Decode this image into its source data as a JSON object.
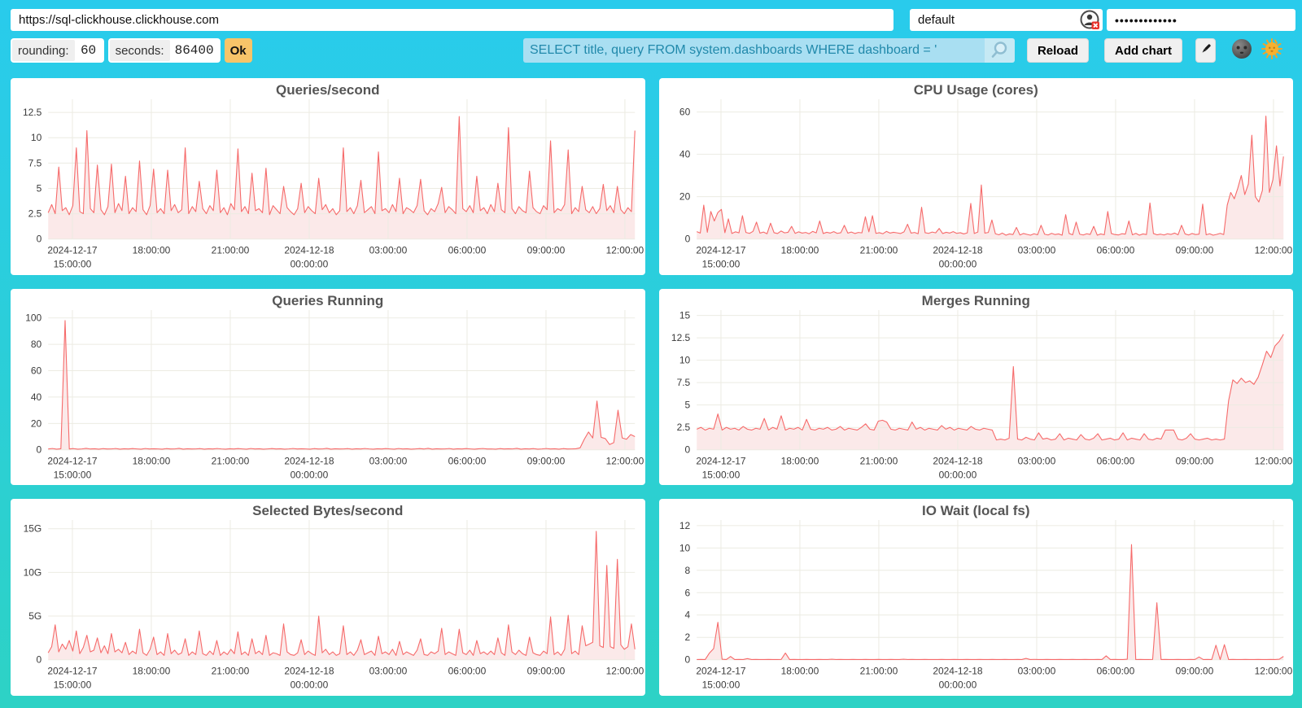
{
  "browser": {
    "url_value": "https://sql-clickhouse.clickhouse.com",
    "user_value": "default",
    "password_value": "•••••••••••••"
  },
  "toolbar": {
    "rounding_label": "rounding:",
    "rounding_value": "60",
    "seconds_label": "seconds:",
    "seconds_value": "86400",
    "ok_label": "Ok",
    "query_value": "SELECT title, query FROM system.dashboards WHERE dashboard = '",
    "search_icon": "magnifier-icon",
    "reload_label": "Reload",
    "add_chart_label": "Add chart",
    "edit_icon": "pencil-icon",
    "dark_toggle_icon": "new-moon-face-icon",
    "light_toggle_icon": "sun-with-face-icon",
    "user_field_icon": "user-circle-x-icon"
  },
  "colors": {
    "background_top": "#29CBEC",
    "background_bottom": "#2DD2C5",
    "ok_button": "#F7C469",
    "query_background": "#A9DFF2",
    "query_text": "#2189AB",
    "panel_background": "#FFFFFF",
    "title_text": "#555555",
    "axis_text": "#3B3B3B"
  },
  "chart_data": {
    "type": "line",
    "style": "area",
    "line_color": "#F66A6A",
    "fill_color": "#FBE9E9",
    "grid_color": "#ECEBE2",
    "x_axis": {
      "start_hour": 14.08,
      "end_hour": 36.38,
      "ticks": [
        {
          "hour": 15,
          "lines": [
            "2024-12-17",
            "15:00:00"
          ]
        },
        {
          "hour": 18,
          "lines": [
            "18:00:00"
          ]
        },
        {
          "hour": 21,
          "lines": [
            "21:00:00"
          ]
        },
        {
          "hour": 24,
          "lines": [
            "2024-12-18",
            "00:00:00"
          ]
        },
        {
          "hour": 27,
          "lines": [
            "03:00:00"
          ]
        },
        {
          "hour": 30,
          "lines": [
            "06:00:00"
          ]
        },
        {
          "hour": 33,
          "lines": [
            "09:00:00"
          ]
        },
        {
          "hour": 36,
          "lines": [
            "12:00:00"
          ]
        }
      ]
    },
    "charts": [
      {
        "title": "Queries/second",
        "ylim": [
          0,
          13.8
        ],
        "yticks": [
          {
            "v": 0,
            "label": "0"
          },
          {
            "v": 2.5,
            "label": "2.5"
          },
          {
            "v": 5,
            "label": "5"
          },
          {
            "v": 7.5,
            "label": "7.5"
          },
          {
            "v": 10,
            "label": "10"
          },
          {
            "v": 12.5,
            "label": "12.5"
          }
        ],
        "values": [
          2.6,
          3.4,
          2.5,
          7.1,
          2.8,
          3.1,
          2.4,
          3.3,
          9.0,
          2.7,
          2.5,
          10.7,
          3.0,
          2.6,
          7.3,
          2.9,
          2.4,
          3.2,
          7.4,
          2.6,
          3.5,
          2.8,
          6.2,
          2.5,
          3.1,
          2.7,
          7.7,
          2.9,
          2.4,
          3.3,
          6.9,
          2.6,
          3.0,
          2.5,
          6.8,
          2.8,
          3.4,
          2.6,
          2.9,
          9.0,
          2.5,
          3.2,
          2.7,
          5.7,
          3.0,
          2.5,
          3.3,
          2.8,
          6.8,
          2.6,
          3.1,
          2.4,
          3.5,
          2.9,
          8.9,
          2.7,
          3.2,
          2.5,
          6.5,
          2.8,
          3.0,
          2.6,
          7.0,
          2.4,
          3.3,
          2.9,
          2.5,
          5.2,
          3.1,
          2.7,
          2.4,
          3.0,
          5.5,
          2.6,
          3.2,
          2.8,
          2.5,
          6.0,
          2.9,
          3.4,
          2.6,
          3.0,
          2.4,
          2.8,
          9.0,
          2.7,
          3.1,
          2.5,
          3.3,
          5.8,
          2.6,
          2.9,
          3.2,
          2.5,
          8.6,
          2.8,
          3.0,
          2.6,
          3.4,
          2.7,
          6.0,
          2.5,
          3.1,
          2.9,
          2.6,
          3.3,
          5.9,
          2.8,
          2.4,
          3.0,
          2.7,
          3.5,
          5.1,
          2.6,
          3.2,
          2.9,
          2.5,
          12.1,
          3.0,
          2.7,
          3.3,
          2.6,
          6.2,
          2.8,
          3.1,
          2.5,
          3.4,
          2.7,
          5.5,
          2.9,
          2.6,
          11.0,
          3.0,
          2.5,
          3.2,
          2.8,
          2.6,
          6.7,
          3.1,
          2.7,
          2.5,
          3.3,
          2.9,
          9.7,
          2.6,
          3.0,
          2.8,
          3.4,
          8.8,
          2.5,
          3.1,
          2.7,
          5.2,
          2.9,
          2.6,
          3.2,
          2.5,
          3.0,
          5.4,
          2.8,
          3.3,
          2.6,
          5.2,
          2.9,
          2.5,
          3.1,
          2.7,
          10.7
        ]
      },
      {
        "title": "CPU Usage (cores)",
        "ylim": [
          0,
          66
        ],
        "yticks": [
          {
            "v": 0,
            "label": "0"
          },
          {
            "v": 20,
            "label": "20"
          },
          {
            "v": 40,
            "label": "40"
          },
          {
            "v": 60,
            "label": "60"
          }
        ],
        "values": [
          3.5,
          2.8,
          16.0,
          3.2,
          13.0,
          8.5,
          12.5,
          14.0,
          3.0,
          9.5,
          2.6,
          3.4,
          2.9,
          11.0,
          3.1,
          2.7,
          3.6,
          8.0,
          2.8,
          3.3,
          2.5,
          7.5,
          3.0,
          2.6,
          3.8,
          2.9,
          3.2,
          6.0,
          2.7,
          3.4,
          2.8,
          3.1,
          2.5,
          3.6,
          2.9,
          8.5,
          2.6,
          3.2,
          2.8,
          3.5,
          2.7,
          3.0,
          6.5,
          2.8,
          3.3,
          2.6,
          3.1,
          2.9,
          10.5,
          3.4,
          11.0,
          2.7,
          3.0,
          2.5,
          3.6,
          2.8,
          3.2,
          2.9,
          2.6,
          3.4,
          7.0,
          2.8,
          3.1,
          2.5,
          15.0,
          3.0,
          2.7,
          3.3,
          2.9,
          5.0,
          2.6,
          3.2,
          2.8,
          3.5,
          2.7,
          3.0,
          2.4,
          2.9,
          16.8,
          2.6,
          3.3,
          25.5,
          2.8,
          3.1,
          9.0,
          2.5,
          2.0,
          2.8,
          1.8,
          2.4,
          2.1,
          5.5,
          1.9,
          2.6,
          2.2,
          1.8,
          2.5,
          2.0,
          6.5,
          2.3,
          1.9,
          2.7,
          2.1,
          2.4,
          1.8,
          11.5,
          2.6,
          2.0,
          8.0,
          2.3,
          1.9,
          2.5,
          2.2,
          6.0,
          1.8,
          2.4,
          2.0,
          13.0,
          2.6,
          2.1,
          1.9,
          2.5,
          2.3,
          8.5,
          2.0,
          2.7,
          1.8,
          2.4,
          2.1,
          17.0,
          2.6,
          2.0,
          2.3,
          1.9,
          2.5,
          2.2,
          2.8,
          2.0,
          6.5,
          2.4,
          1.9,
          2.6,
          2.1,
          2.3,
          16.5,
          2.0,
          2.5,
          1.8,
          2.2,
          2.7,
          2.1,
          16.0,
          22.0,
          19.0,
          24.0,
          30.0,
          21.0,
          26.0,
          49.0,
          20.0,
          17.5,
          23.0,
          58.0,
          22.0,
          28.0,
          44.0,
          25.0,
          39.0
        ]
      },
      {
        "title": "Queries Running",
        "ylim": [
          0,
          106
        ],
        "yticks": [
          {
            "v": 0,
            "label": "0"
          },
          {
            "v": 20,
            "label": "20"
          },
          {
            "v": 40,
            "label": "40"
          },
          {
            "v": 60,
            "label": "60"
          },
          {
            "v": 80,
            "label": "80"
          },
          {
            "v": 100,
            "label": "100"
          }
        ],
        "values": [
          0.6,
          1.0,
          0.5,
          0.8,
          98.0,
          0.6,
          0.9,
          0.5,
          0.7,
          1.1,
          0.6,
          0.8,
          0.5,
          0.9,
          0.6,
          0.7,
          1.0,
          0.5,
          0.8,
          0.6,
          0.9,
          0.7,
          0.5,
          1.0,
          0.6,
          0.8,
          0.7,
          0.5,
          0.9,
          0.6,
          0.7,
          1.1,
          0.5,
          0.8,
          0.6,
          0.7,
          0.9,
          0.5,
          0.8,
          0.6,
          1.0,
          0.7,
          0.5,
          0.8,
          0.6,
          0.9,
          0.7,
          0.5,
          1.0,
          0.6,
          0.8,
          0.5,
          0.7,
          0.9,
          0.6,
          0.8,
          0.5,
          0.7,
          1.0,
          0.6,
          0.8,
          0.7,
          0.5,
          0.9,
          0.6,
          0.7,
          1.1,
          0.5,
          0.8,
          0.6,
          0.7,
          0.9,
          0.5,
          0.8,
          0.6,
          1.0,
          0.7,
          0.5,
          0.8,
          0.6,
          0.9,
          0.7,
          0.5,
          1.0,
          0.6,
          0.8,
          0.5,
          0.7,
          0.9,
          0.6,
          1.1,
          0.5,
          0.8,
          0.6,
          0.7,
          1.0,
          0.5,
          0.8,
          0.6,
          0.9,
          0.7,
          0.5,
          0.8,
          1.0,
          0.6,
          0.7,
          0.5,
          0.9,
          0.6,
          0.8,
          0.7,
          1.1,
          0.5,
          0.8,
          0.6,
          0.9,
          0.5,
          0.7,
          1.0,
          0.6,
          0.8,
          0.5,
          0.9,
          0.6,
          0.7,
          0.8,
          1.5,
          8.0,
          13.5,
          9.0,
          37.0,
          9.5,
          8.5,
          4.0,
          5.5,
          30.0,
          9.0,
          8.0,
          11.5,
          10.0
        ]
      },
      {
        "title": "Merges Running",
        "ylim": [
          0,
          15.6
        ],
        "yticks": [
          {
            "v": 0,
            "label": "0"
          },
          {
            "v": 2.5,
            "label": "2.5"
          },
          {
            "v": 5,
            "label": "5"
          },
          {
            "v": 7.5,
            "label": "7.5"
          },
          {
            "v": 10,
            "label": "10"
          },
          {
            "v": 12.5,
            "label": "12.5"
          },
          {
            "v": 15,
            "label": "15"
          }
        ],
        "values": [
          2.3,
          2.5,
          2.2,
          2.4,
          2.3,
          4.0,
          2.2,
          2.5,
          2.3,
          2.4,
          2.2,
          2.6,
          2.3,
          2.2,
          2.4,
          2.3,
          3.5,
          2.2,
          2.5,
          2.3,
          3.8,
          2.2,
          2.4,
          2.3,
          2.5,
          2.2,
          3.4,
          2.3,
          2.2,
          2.4,
          2.3,
          2.5,
          2.2,
          2.3,
          2.6,
          2.2,
          2.4,
          2.3,
          2.2,
          2.5,
          2.9,
          2.3,
          2.2,
          3.2,
          3.3,
          3.1,
          2.3,
          2.2,
          2.4,
          2.3,
          2.2,
          3.1,
          2.3,
          2.5,
          2.2,
          2.4,
          2.3,
          2.2,
          2.7,
          2.3,
          2.5,
          2.2,
          2.4,
          2.3,
          2.2,
          2.6,
          2.3,
          2.2,
          2.4,
          2.3,
          2.2,
          1.1,
          1.2,
          1.1,
          1.3,
          9.3,
          1.2,
          1.1,
          1.4,
          1.2,
          1.1,
          1.9,
          1.2,
          1.3,
          1.1,
          1.2,
          1.8,
          1.1,
          1.3,
          1.2,
          1.1,
          1.7,
          1.2,
          1.1,
          1.3,
          1.8,
          1.1,
          1.2,
          1.3,
          1.1,
          1.2,
          1.9,
          1.1,
          1.3,
          1.2,
          1.1,
          1.8,
          1.2,
          1.1,
          1.3,
          1.2,
          2.2,
          2.2,
          2.2,
          1.2,
          1.1,
          1.3,
          1.8,
          1.2,
          1.1,
          1.2,
          1.3,
          1.1,
          1.2,
          1.1,
          1.2,
          5.5,
          7.8,
          7.4,
          8.0,
          7.5,
          7.7,
          7.3,
          8.1,
          9.5,
          11.0,
          10.3,
          11.6,
          12.1,
          12.9
        ]
      },
      {
        "title": "Selected Bytes/second",
        "ylim": [
          0,
          16
        ],
        "yticks": [
          {
            "v": 0,
            "label": "0"
          },
          {
            "v": 5,
            "label": "5G"
          },
          {
            "v": 10,
            "label": "10G"
          },
          {
            "v": 15,
            "label": "15G"
          }
        ],
        "values": [
          0.8,
          1.5,
          4.0,
          0.9,
          1.8,
          1.2,
          2.2,
          1.0,
          3.3,
          0.7,
          1.4,
          2.8,
          0.9,
          1.1,
          2.5,
          0.8,
          1.6,
          0.7,
          3.0,
          0.9,
          1.2,
          0.8,
          2.0,
          0.6,
          1.0,
          0.7,
          3.5,
          0.8,
          0.5,
          1.2,
          2.6,
          0.6,
          0.9,
          0.5,
          3.0,
          0.7,
          1.1,
          0.6,
          0.8,
          2.4,
          0.5,
          0.9,
          0.6,
          3.3,
          0.7,
          0.5,
          1.0,
          0.6,
          2.2,
          0.5,
          0.9,
          0.6,
          1.2,
          0.7,
          3.2,
          0.6,
          0.9,
          0.5,
          2.4,
          0.7,
          1.0,
          0.6,
          2.8,
          0.5,
          0.8,
          0.7,
          0.5,
          4.1,
          0.9,
          0.6,
          0.5,
          0.8,
          2.3,
          0.6,
          1.0,
          0.7,
          0.5,
          5.0,
          0.8,
          1.2,
          0.6,
          0.9,
          0.5,
          0.7,
          3.9,
          0.6,
          0.9,
          0.5,
          1.1,
          2.3,
          0.6,
          0.8,
          1.0,
          0.5,
          2.7,
          0.7,
          0.9,
          0.6,
          1.2,
          0.5,
          2.1,
          0.6,
          0.9,
          0.7,
          0.5,
          1.1,
          2.4,
          0.6,
          0.5,
          0.9,
          0.7,
          1.0,
          3.6,
          0.6,
          0.9,
          0.7,
          0.5,
          3.5,
          0.8,
          0.6,
          1.1,
          0.5,
          2.2,
          0.7,
          0.9,
          0.6,
          1.0,
          0.6,
          2.5,
          0.8,
          0.5,
          4.0,
          0.9,
          0.6,
          1.1,
          0.7,
          0.5,
          2.6,
          0.8,
          0.6,
          0.5,
          1.0,
          0.7,
          4.9,
          0.6,
          0.9,
          0.5,
          1.2,
          5.1,
          0.7,
          1.0,
          0.6,
          3.9,
          1.6,
          1.8,
          2.0,
          14.7,
          1.6,
          1.4,
          10.8,
          1.5,
          1.3,
          11.5,
          1.7,
          1.2,
          1.5,
          4.1,
          1.2
        ]
      },
      {
        "title": "IO Wait (local fs)",
        "ylim": [
          0,
          12.5
        ],
        "yticks": [
          {
            "v": 0,
            "label": "0"
          },
          {
            "v": 2,
            "label": "2"
          },
          {
            "v": 4,
            "label": "4"
          },
          {
            "v": 6,
            "label": "6"
          },
          {
            "v": 8,
            "label": "8"
          },
          {
            "v": 10,
            "label": "10"
          },
          {
            "v": 12,
            "label": "12"
          }
        ],
        "values": [
          0.02,
          0.03,
          0.02,
          0.6,
          1.0,
          3.35,
          0.05,
          0.02,
          0.3,
          0.02,
          0.03,
          0.02,
          0.1,
          0.02,
          0.03,
          0.02,
          0.02,
          0.03,
          0.02,
          0.02,
          0.03,
          0.6,
          0.02,
          0.03,
          0.02,
          0.02,
          0.03,
          0.02,
          0.02,
          0.03,
          0.02,
          0.02,
          0.05,
          0.02,
          0.03,
          0.02,
          0.02,
          0.03,
          0.02,
          0.02,
          0.03,
          0.02,
          0.02,
          0.03,
          0.02,
          0.02,
          0.03,
          0.02,
          0.02,
          0.05,
          0.02,
          0.03,
          0.02,
          0.02,
          0.03,
          0.02,
          0.02,
          0.02,
          0.03,
          0.02,
          0.02,
          0.03,
          0.02,
          0.02,
          0.03,
          0.02,
          0.02,
          0.03,
          0.02,
          0.02,
          0.03,
          0.02,
          0.02,
          0.03,
          0.02,
          0.02,
          0.03,
          0.02,
          0.12,
          0.02,
          0.03,
          0.02,
          0.02,
          0.03,
          0.02,
          0.02,
          0.03,
          0.02,
          0.02,
          0.03,
          0.02,
          0.02,
          0.03,
          0.02,
          0.02,
          0.03,
          0.02,
          0.35,
          0.02,
          0.03,
          0.02,
          0.02,
          0.05,
          10.3,
          0.02,
          0.03,
          0.02,
          0.02,
          0.03,
          5.1,
          0.02,
          0.03,
          0.02,
          0.02,
          0.03,
          0.02,
          0.02,
          0.03,
          0.02,
          0.25,
          0.02,
          0.03,
          0.02,
          1.3,
          0.02,
          1.35,
          0.02,
          0.03,
          0.02,
          0.02,
          0.03,
          0.02,
          0.02,
          0.03,
          0.02,
          0.02,
          0.03,
          0.02,
          0.05,
          0.3
        ]
      }
    ]
  }
}
